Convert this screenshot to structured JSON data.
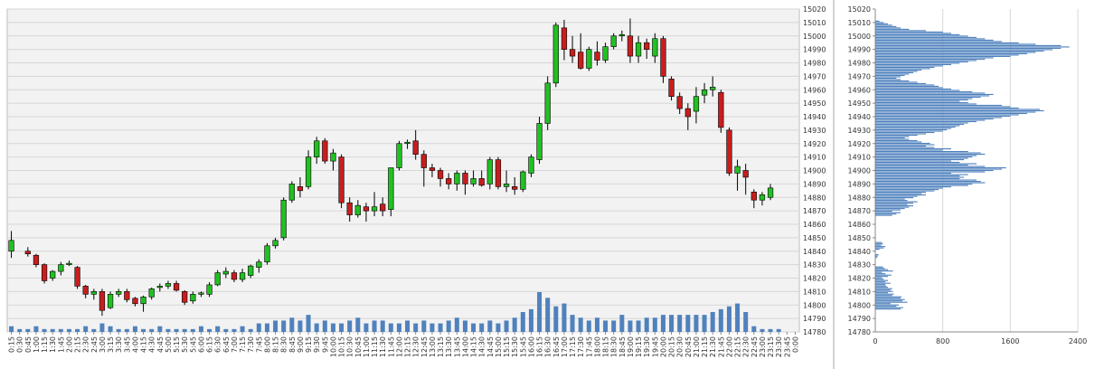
{
  "chart_data": [
    {
      "type": "candlestick",
      "y_ticks": [
        "14780",
        "14790",
        "14800",
        "14810",
        "14820",
        "14830",
        "14840",
        "14850",
        "14860",
        "14870",
        "14880",
        "14890",
        "14900",
        "14910",
        "14920",
        "14930",
        "14940",
        "14950",
        "14960",
        "14970",
        "14980",
        "14990",
        "15000",
        "15010",
        "15020"
      ],
      "ylim": [
        14780,
        15020
      ],
      "grid": true,
      "x_labels": [
        "0:15",
        "0:30",
        "0:45",
        "1:00",
        "1:15",
        "1:30",
        "1:45",
        "2:00",
        "2:15",
        "2:30",
        "2:45",
        "3:00",
        "3:15",
        "3:30",
        "3:45",
        "4:00",
        "4:15",
        "4:30",
        "4:45",
        "5:00",
        "5:15",
        "5:30",
        "5:45",
        "6:00",
        "6:15",
        "6:30",
        "6:45",
        "7:00",
        "7:15",
        "7:30",
        "7:45",
        "8:00",
        "8:15",
        "8:30",
        "8:45",
        "9:00",
        "9:15",
        "9:30",
        "9:45",
        "10:00",
        "10:15",
        "10:30",
        "10:45",
        "11:00",
        "11:15",
        "11:30",
        "11:45",
        "12:00",
        "12:15",
        "12:30",
        "12:45",
        "13:00",
        "13:15",
        "13:30",
        "13:45",
        "14:00",
        "14:15",
        "14:30",
        "14:45",
        "15:00",
        "15:15",
        "15:30",
        "15:45",
        "16:00",
        "16:15",
        "16:30",
        "16:45",
        "17:00",
        "17:15",
        "17:30",
        "17:45",
        "18:00",
        "18:15",
        "18:30",
        "18:45",
        "19:00",
        "19:15",
        "19:30",
        "19:45",
        "20:00",
        "20:15",
        "20:30",
        "20:45",
        "21:00",
        "21:15",
        "21:30",
        "21:45",
        "22:00",
        "22:15",
        "22:30",
        "22:45",
        "23:00",
        "23:15",
        "23:30",
        "23:45",
        "0:00"
      ],
      "candles": [
        {
          "x": "0:15",
          "o": 14840,
          "h": 14855,
          "l": 14835,
          "c": 14848
        },
        {
          "x": "0:45",
          "o": 14840,
          "h": 14843,
          "l": 14836,
          "c": 14838
        },
        {
          "x": "1:00",
          "o": 14837,
          "h": 14838,
          "l": 14828,
          "c": 14830
        },
        {
          "x": "1:15",
          "o": 14830,
          "h": 14831,
          "l": 14816,
          "c": 14818
        },
        {
          "x": "1:30",
          "o": 14820,
          "h": 14826,
          "l": 14818,
          "c": 14825
        },
        {
          "x": "1:45",
          "o": 14825,
          "h": 14832,
          "l": 14822,
          "c": 14830
        },
        {
          "x": "2:00",
          "o": 14830,
          "h": 14833,
          "l": 14829,
          "c": 14831
        },
        {
          "x": "2:15",
          "o": 14828,
          "h": 14829,
          "l": 14812,
          "c": 14814
        },
        {
          "x": "2:30",
          "o": 14814,
          "h": 14815,
          "l": 14805,
          "c": 14808
        },
        {
          "x": "2:45",
          "o": 14808,
          "h": 14812,
          "l": 14804,
          "c": 14810
        },
        {
          "x": "3:00",
          "o": 14810,
          "h": 14812,
          "l": 14792,
          "c": 14796
        },
        {
          "x": "3:15",
          "o": 14798,
          "h": 14810,
          "l": 14797,
          "c": 14808
        },
        {
          "x": "3:30",
          "o": 14808,
          "h": 14812,
          "l": 14806,
          "c": 14810
        },
        {
          "x": "3:45",
          "o": 14810,
          "h": 14812,
          "l": 14802,
          "c": 14804
        },
        {
          "x": "4:00",
          "o": 14805,
          "h": 14806,
          "l": 14799,
          "c": 14801
        },
        {
          "x": "4:15",
          "o": 14801,
          "h": 14807,
          "l": 14795,
          "c": 14806
        },
        {
          "x": "4:30",
          "o": 14806,
          "h": 14813,
          "l": 14804,
          "c": 14812
        },
        {
          "x": "4:45",
          "o": 14813,
          "h": 14816,
          "l": 14810,
          "c": 14814
        },
        {
          "x": "5:00",
          "o": 14814,
          "h": 14818,
          "l": 14812,
          "c": 14816
        },
        {
          "x": "5:15",
          "o": 14816,
          "h": 14818,
          "l": 14810,
          "c": 14811
        },
        {
          "x": "5:30",
          "o": 14810,
          "h": 14811,
          "l": 14800,
          "c": 14802
        },
        {
          "x": "5:45",
          "o": 14803,
          "h": 14810,
          "l": 14801,
          "c": 14808
        },
        {
          "x": "6:00",
          "o": 14808,
          "h": 14810,
          "l": 14806,
          "c": 14809
        },
        {
          "x": "6:15",
          "o": 14808,
          "h": 14817,
          "l": 14806,
          "c": 14815
        },
        {
          "x": "6:30",
          "o": 14815,
          "h": 14826,
          "l": 14814,
          "c": 14824
        },
        {
          "x": "6:45",
          "o": 14823,
          "h": 14828,
          "l": 14820,
          "c": 14825
        },
        {
          "x": "7:00",
          "o": 14824,
          "h": 14826,
          "l": 14817,
          "c": 14819
        },
        {
          "x": "7:15",
          "o": 14819,
          "h": 14827,
          "l": 14817,
          "c": 14824
        },
        {
          "x": "7:30",
          "o": 14822,
          "h": 14830,
          "l": 14820,
          "c": 14829
        },
        {
          "x": "7:45",
          "o": 14828,
          "h": 14834,
          "l": 14824,
          "c": 14832
        },
        {
          "x": "8:00",
          "o": 14832,
          "h": 14846,
          "l": 14830,
          "c": 14844
        },
        {
          "x": "8:15",
          "o": 14844,
          "h": 14850,
          "l": 14842,
          "c": 14848
        },
        {
          "x": "8:30",
          "o": 14850,
          "h": 14880,
          "l": 14848,
          "c": 14878
        },
        {
          "x": "8:45",
          "o": 14878,
          "h": 14892,
          "l": 14876,
          "c": 14890
        },
        {
          "x": "9:00",
          "o": 14888,
          "h": 14895,
          "l": 14880,
          "c": 14885
        },
        {
          "x": "9:15",
          "o": 14888,
          "h": 14915,
          "l": 14886,
          "c": 14910
        },
        {
          "x": "9:30",
          "o": 14910,
          "h": 14925,
          "l": 14905,
          "c": 14922
        },
        {
          "x": "9:45",
          "o": 14922,
          "h": 14924,
          "l": 14905,
          "c": 14907
        },
        {
          "x": "10:00",
          "o": 14907,
          "h": 14916,
          "l": 14900,
          "c": 14913
        },
        {
          "x": "10:15",
          "o": 14910,
          "h": 14912,
          "l": 14872,
          "c": 14876
        },
        {
          "x": "10:30",
          "o": 14876,
          "h": 14880,
          "l": 14862,
          "c": 14867
        },
        {
          "x": "10:45",
          "o": 14867,
          "h": 14878,
          "l": 14865,
          "c": 14874
        },
        {
          "x": "11:00",
          "o": 14873,
          "h": 14876,
          "l": 14862,
          "c": 14870
        },
        {
          "x": "11:15",
          "o": 14870,
          "h": 14884,
          "l": 14866,
          "c": 14873
        },
        {
          "x": "11:30",
          "o": 14875,
          "h": 14880,
          "l": 14866,
          "c": 14870
        },
        {
          "x": "11:45",
          "o": 14871,
          "h": 14902,
          "l": 14866,
          "c": 14902
        },
        {
          "x": "12:00",
          "o": 14902,
          "h": 14922,
          "l": 14900,
          "c": 14920
        },
        {
          "x": "12:15",
          "o": 14920,
          "h": 14923,
          "l": 14916,
          "c": 14921
        },
        {
          "x": "12:30",
          "o": 14922,
          "h": 14930,
          "l": 14908,
          "c": 14912
        },
        {
          "x": "12:45",
          "o": 14912,
          "h": 14915,
          "l": 14888,
          "c": 14902
        },
        {
          "x": "13:00",
          "o": 14902,
          "h": 14905,
          "l": 14895,
          "c": 14900
        },
        {
          "x": "13:15",
          "o": 14900,
          "h": 14902,
          "l": 14888,
          "c": 14894
        },
        {
          "x": "13:30",
          "o": 14894,
          "h": 14898,
          "l": 14886,
          "c": 14890
        },
        {
          "x": "13:45",
          "o": 14890,
          "h": 14900,
          "l": 14885,
          "c": 14898
        },
        {
          "x": "14:00",
          "o": 14898,
          "h": 14900,
          "l": 14882,
          "c": 14890
        },
        {
          "x": "14:15",
          "o": 14890,
          "h": 14900,
          "l": 14888,
          "c": 14894
        },
        {
          "x": "14:30",
          "o": 14894,
          "h": 14900,
          "l": 14888,
          "c": 14889
        },
        {
          "x": "14:45",
          "o": 14890,
          "h": 14910,
          "l": 14886,
          "c": 14908
        },
        {
          "x": "15:00",
          "o": 14908,
          "h": 14910,
          "l": 14886,
          "c": 14888
        },
        {
          "x": "15:15",
          "o": 14888,
          "h": 14900,
          "l": 14884,
          "c": 14890
        },
        {
          "x": "15:30",
          "o": 14888,
          "h": 14895,
          "l": 14882,
          "c": 14886
        },
        {
          "x": "15:45",
          "o": 14886,
          "h": 14900,
          "l": 14884,
          "c": 14899
        },
        {
          "x": "16:00",
          "o": 14898,
          "h": 14912,
          "l": 14895,
          "c": 14910
        },
        {
          "x": "16:15",
          "o": 14908,
          "h": 14940,
          "l": 14905,
          "c": 14935
        },
        {
          "x": "16:30",
          "o": 14935,
          "h": 14970,
          "l": 14930,
          "c": 14965
        },
        {
          "x": "16:45",
          "o": 14965,
          "h": 15010,
          "l": 14962,
          "c": 15008
        },
        {
          "x": "17:00",
          "o": 15006,
          "h": 15012,
          "l": 14982,
          "c": 14990
        },
        {
          "x": "17:15",
          "o": 14990,
          "h": 15000,
          "l": 14980,
          "c": 14985
        },
        {
          "x": "17:30",
          "o": 14988,
          "h": 15002,
          "l": 14975,
          "c": 14976
        },
        {
          "x": "17:45",
          "o": 14976,
          "h": 14992,
          "l": 14974,
          "c": 14990
        },
        {
          "x": "18:00",
          "o": 14988,
          "h": 14996,
          "l": 14978,
          "c": 14982
        },
        {
          "x": "18:15",
          "o": 14982,
          "h": 14995,
          "l": 14980,
          "c": 14992
        },
        {
          "x": "18:30",
          "o": 14992,
          "h": 15002,
          "l": 14990,
          "c": 15000
        },
        {
          "x": "18:45",
          "o": 15000,
          "h": 15004,
          "l": 14996,
          "c": 15001
        },
        {
          "x": "19:00",
          "o": 15000,
          "h": 15013,
          "l": 14980,
          "c": 14985
        },
        {
          "x": "19:15",
          "o": 14985,
          "h": 15000,
          "l": 14980,
          "c": 14995
        },
        {
          "x": "19:30",
          "o": 14995,
          "h": 14998,
          "l": 14983,
          "c": 14990
        },
        {
          "x": "19:45",
          "o": 14985,
          "h": 15002,
          "l": 14980,
          "c": 14998
        },
        {
          "x": "20:00",
          "o": 14998,
          "h": 15000,
          "l": 14965,
          "c": 14970
        },
        {
          "x": "20:15",
          "o": 14968,
          "h": 14970,
          "l": 14952,
          "c": 14955
        },
        {
          "x": "20:30",
          "o": 14955,
          "h": 14958,
          "l": 14942,
          "c": 14946
        },
        {
          "x": "20:45",
          "o": 14946,
          "h": 14950,
          "l": 14930,
          "c": 14940
        },
        {
          "x": "21:00",
          "o": 14944,
          "h": 14962,
          "l": 14935,
          "c": 14955
        },
        {
          "x": "21:15",
          "o": 14956,
          "h": 14965,
          "l": 14950,
          "c": 14960
        },
        {
          "x": "21:30",
          "o": 14960,
          "h": 14970,
          "l": 14955,
          "c": 14962
        },
        {
          "x": "21:45",
          "o": 14958,
          "h": 14960,
          "l": 14928,
          "c": 14932
        },
        {
          "x": "22:00",
          "o": 14930,
          "h": 14932,
          "l": 14896,
          "c": 14898
        },
        {
          "x": "22:15",
          "o": 14898,
          "h": 14908,
          "l": 14885,
          "c": 14903
        },
        {
          "x": "22:30",
          "o": 14900,
          "h": 14905,
          "l": 14882,
          "c": 14895
        },
        {
          "x": "22:45",
          "o": 14884,
          "h": 14886,
          "l": 14872,
          "c": 14878
        },
        {
          "x": "23:00",
          "o": 14878,
          "h": 14884,
          "l": 14874,
          "c": 14882
        },
        {
          "x": "23:15",
          "o": 14880,
          "h": 14890,
          "l": 14878,
          "c": 14887
        }
      ],
      "volume": [
        2,
        1,
        1,
        2,
        1,
        1,
        1,
        1,
        1,
        2,
        1,
        3,
        2,
        1,
        1,
        2,
        1,
        1,
        2,
        1,
        1,
        1,
        1,
        2,
        1,
        2,
        1,
        1,
        2,
        1,
        3,
        3,
        4,
        4,
        5,
        4,
        6,
        3,
        4,
        3,
        3,
        4,
        5,
        3,
        4,
        4,
        3,
        3,
        4,
        3,
        4,
        3,
        3,
        4,
        5,
        4,
        3,
        3,
        4,
        3,
        4,
        5,
        7,
        8,
        14,
        12,
        9,
        10,
        6,
        5,
        4,
        5,
        4,
        4,
        6,
        4,
        4,
        5,
        5,
        6,
        6,
        6,
        6,
        6,
        6,
        7,
        8,
        9,
        10,
        7,
        2,
        1,
        1,
        1,
        0,
        0
      ]
    },
    {
      "type": "bar",
      "orientation": "horizontal",
      "x_ticks": [
        "0",
        "800",
        "1600",
        "2400"
      ],
      "xlim": [
        0,
        2400
      ],
      "y_ticks": [
        "14780",
        "14790",
        "14800",
        "14810",
        "14820",
        "14830",
        "14840",
        "14850",
        "14860",
        "14870",
        "14880",
        "14890",
        "14900",
        "14910",
        "14920",
        "14930",
        "14940",
        "14950",
        "14960",
        "14970",
        "14980",
        "14990",
        "15000",
        "15010",
        "15020"
      ],
      "ylim": [
        14780,
        15020
      ],
      "price_levels_start": 14797,
      "price_levels_end": 15011,
      "values": [
        300,
        330,
        250,
        280,
        180,
        380,
        320,
        350,
        300,
        310,
        200,
        220,
        150,
        210,
        180,
        200,
        150,
        130,
        120,
        180,
        120,
        150,
        100,
        80,
        150,
        190,
        120,
        80,
        210,
        150,
        110,
        90,
        0,
        0,
        0,
        0,
        0,
        0,
        20,
        30,
        40,
        0,
        0,
        0,
        50,
        100,
        120,
        70,
        90,
        80,
        0,
        0,
        0,
        0,
        0,
        0,
        0,
        0,
        0,
        0,
        0,
        0,
        0,
        0,
        0,
        0,
        0,
        0,
        0,
        200,
        250,
        300,
        200,
        300,
        350,
        400,
        450,
        380,
        450,
        500,
        380,
        350,
        450,
        500,
        600,
        550,
        600,
        700,
        750,
        800,
        900,
        1100,
        1150,
        1300,
        1250,
        1200,
        1000,
        1050,
        1000,
        1100,
        900,
        1300,
        1400,
        1500,
        1550,
        1300,
        1100,
        1200,
        1000,
        900,
        1050,
        1100,
        1150,
        1200,
        1300,
        1250,
        1100,
        800,
        900,
        700,
        600,
        700,
        650,
        550,
        500,
        400,
        350,
        400,
        500,
        600,
        700,
        800,
        850,
        900,
        950,
        1000,
        1050,
        1100,
        1200,
        1300,
        1400,
        1500,
        1600,
        1700,
        1800,
        1900,
        2000,
        1950,
        1700,
        1600,
        1500,
        1200,
        1100,
        1000,
        1100,
        1150,
        1250,
        1350,
        1400,
        1300,
        1150,
        1000,
        900,
        800,
        750,
        700,
        600,
        500,
        400,
        300,
        250,
        300,
        350,
        400,
        450,
        500,
        550,
        650,
        700,
        800,
        900,
        1000,
        1100,
        1200,
        1300,
        1400,
        1600,
        1700,
        1800,
        1900,
        2000,
        2100,
        2200,
        2300,
        2200,
        1900,
        1700,
        1500,
        1400,
        1300,
        1200,
        1100,
        1000,
        900,
        800,
        600,
        400,
        300,
        250,
        200,
        150,
        100,
        50
      ]
    }
  ]
}
